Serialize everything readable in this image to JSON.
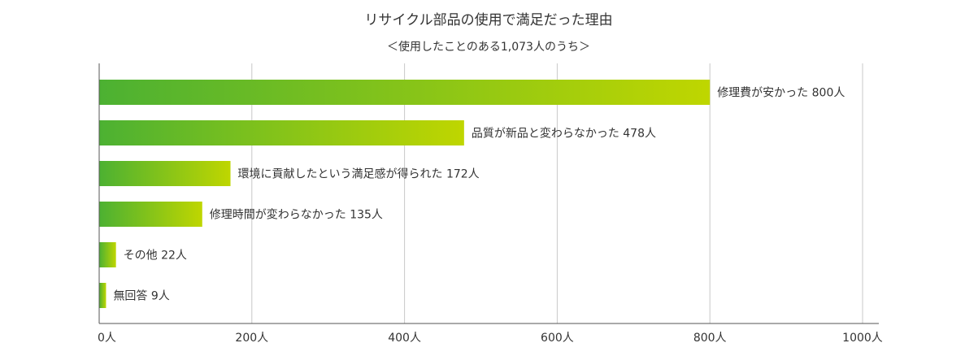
{
  "chart_data": {
    "type": "bar",
    "orientation": "horizontal",
    "title": "リサイクル部品の使用で満足だった理由",
    "subtitle": "＜使用したことのある1,073人のうち＞",
    "categories": [
      "修理費が安かった",
      "品質が新品と変わらなかった",
      "環境に貢献したという満足感が得られた",
      "修理時間が変わらなかった",
      "その他",
      "無回答"
    ],
    "values": [
      800,
      478,
      172,
      135,
      22,
      9
    ],
    "value_suffix": "人",
    "xlim": [
      0,
      1000
    ],
    "x_ticks": [
      0,
      200,
      400,
      600,
      800,
      1000
    ],
    "x_tick_labels": [
      "0人",
      "200人",
      "400人",
      "600人",
      "800人",
      "1000人"
    ],
    "grid": true,
    "colors": {
      "bar_start": "#4cb132",
      "bar_end": "#bfd600",
      "grid": "#c8c8c8",
      "axis": "#555555",
      "text": "#333333"
    }
  }
}
